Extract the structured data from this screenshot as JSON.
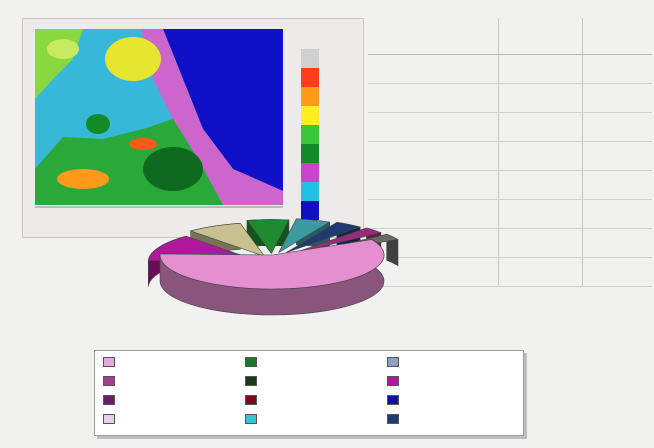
{
  "chart_data": [
    {
      "type": "heatmap",
      "title": "",
      "legend_colors": [
        "#d0d0d0",
        "#ff3d1a",
        "#ff9a1a",
        "#ffee22",
        "#3ac83a",
        "#128a28",
        "#cc44cc",
        "#22c0e0",
        "#1010c0"
      ],
      "legend_labels": [
        "",
        "",
        "",
        "",
        "",
        "",
        "",
        "",
        ""
      ],
      "legend_title": "",
      "x_ticks": [
        "",
        ""
      ],
      "grid": false
    },
    {
      "type": "table",
      "columns": [
        "",
        "",
        ""
      ],
      "rows": [
        [
          "",
          "",
          ""
        ],
        [
          "",
          "",
          ""
        ],
        [
          "",
          "",
          ""
        ],
        [
          "",
          "",
          ""
        ],
        [
          "",
          "",
          ""
        ],
        [
          "",
          "",
          ""
        ],
        [
          "",
          "",
          ""
        ],
        [
          "",
          "",
          ""
        ]
      ]
    },
    {
      "type": "pie",
      "title": "",
      "slices": [
        {
          "name": "",
          "value": 58,
          "color": "#e58ed0"
        },
        {
          "name": "",
          "value": 13,
          "color": "#b0179a"
        },
        {
          "name": "",
          "value": 8,
          "color": "#c8c08f"
        },
        {
          "name": "",
          "value": 6,
          "color": "#1f8a2f"
        },
        {
          "name": "",
          "value": 5,
          "color": "#3a9aa0"
        },
        {
          "name": "",
          "value": 4,
          "color": "#1f3a6f"
        },
        {
          "name": "",
          "value": 3,
          "color": "#9a2a7a"
        },
        {
          "name": "",
          "value": 3,
          "color": "#6a6a6a"
        }
      ],
      "legend": {
        "placement": "bottom",
        "entries": [
          {
            "label": "",
            "color": "#e9a6df"
          },
          {
            "label": "",
            "color": "#a03f8c"
          },
          {
            "label": "",
            "color": "#6b1e6b"
          },
          {
            "label": "",
            "color": "#e9cfe9"
          },
          {
            "label": "",
            "color": "#1a7a2a"
          },
          {
            "label": "",
            "color": "#1a3a1a"
          },
          {
            "label": "",
            "color": "#7a0a1a"
          },
          {
            "label": "",
            "color": "#32c8d8"
          },
          {
            "label": "",
            "color": "#8aa0c8"
          },
          {
            "label": "",
            "color": "#b0179a"
          },
          {
            "label": "",
            "color": "#1010a0"
          },
          {
            "label": "",
            "color": "#1f3a6f"
          }
        ]
      }
    }
  ]
}
